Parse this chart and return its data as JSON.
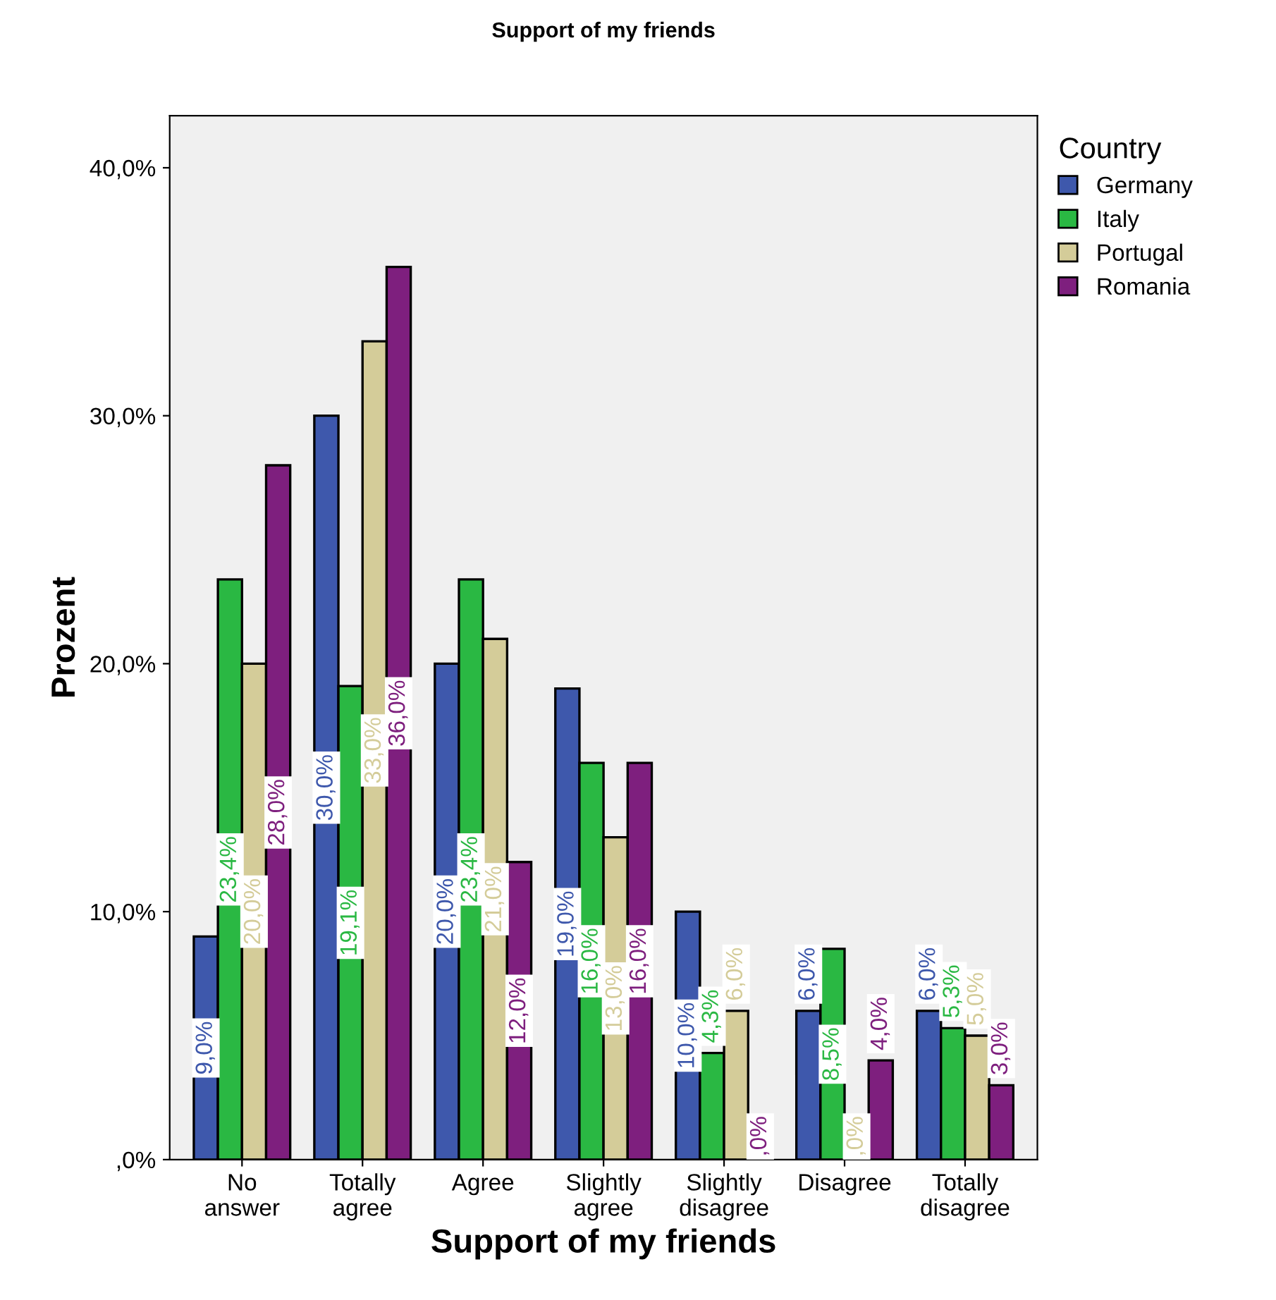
{
  "chart_data": {
    "type": "bar",
    "title": "Support of my friends",
    "xlabel": "Support of my friends",
    "ylabel": "Prozent",
    "legend_title": "Country",
    "legend": "right",
    "categories": [
      "No\nanswer",
      "Totally\nagree",
      "Agree",
      "Slightly\nagree",
      "Slightly\ndisagree",
      "Disagree",
      "Totally\ndisagree"
    ],
    "ylim": [
      0,
      42.1
    ],
    "yticks": [
      {
        "value": 0,
        "label": ",0%"
      },
      {
        "value": 10,
        "label": "10,0%"
      },
      {
        "value": 20,
        "label": "20,0%"
      },
      {
        "value": 30,
        "label": "30,0%"
      },
      {
        "value": 40,
        "label": "40,0%"
      }
    ],
    "grid": false,
    "series": [
      {
        "name": "Germany",
        "color": "#3e58ac",
        "values": [
          9.0,
          30.0,
          20.0,
          19.0,
          10.0,
          6.0,
          6.0
        ],
        "value_labels": [
          "9,0%",
          "30,0%",
          "20,0%",
          "19,0%",
          "10,0%",
          "6,0%",
          "6,0%"
        ]
      },
      {
        "name": "Italy",
        "color": "#2ab843",
        "values": [
          23.4,
          19.1,
          23.4,
          16.0,
          4.3,
          8.5,
          5.3
        ],
        "value_labels": [
          "23,4%",
          "19,1%",
          "23,4%",
          "16,0%",
          "4,3%",
          "8,5%",
          "5,3%"
        ]
      },
      {
        "name": "Portugal",
        "color": "#d4cc99",
        "values": [
          20.0,
          33.0,
          21.0,
          13.0,
          6.0,
          0.0,
          5.0
        ],
        "value_labels": [
          "20,0%",
          "33,0%",
          "21,0%",
          "13,0%",
          "6,0%",
          ",0%",
          "5,0%"
        ]
      },
      {
        "name": "Romania",
        "color": "#7e1f7e",
        "values": [
          28.0,
          36.0,
          12.0,
          16.0,
          0.0,
          4.0,
          3.0
        ],
        "value_labels": [
          "28,0%",
          "36,0%",
          "12,0%",
          "16,0%",
          ",0%",
          "4,0%",
          "3,0%"
        ]
      }
    ]
  }
}
